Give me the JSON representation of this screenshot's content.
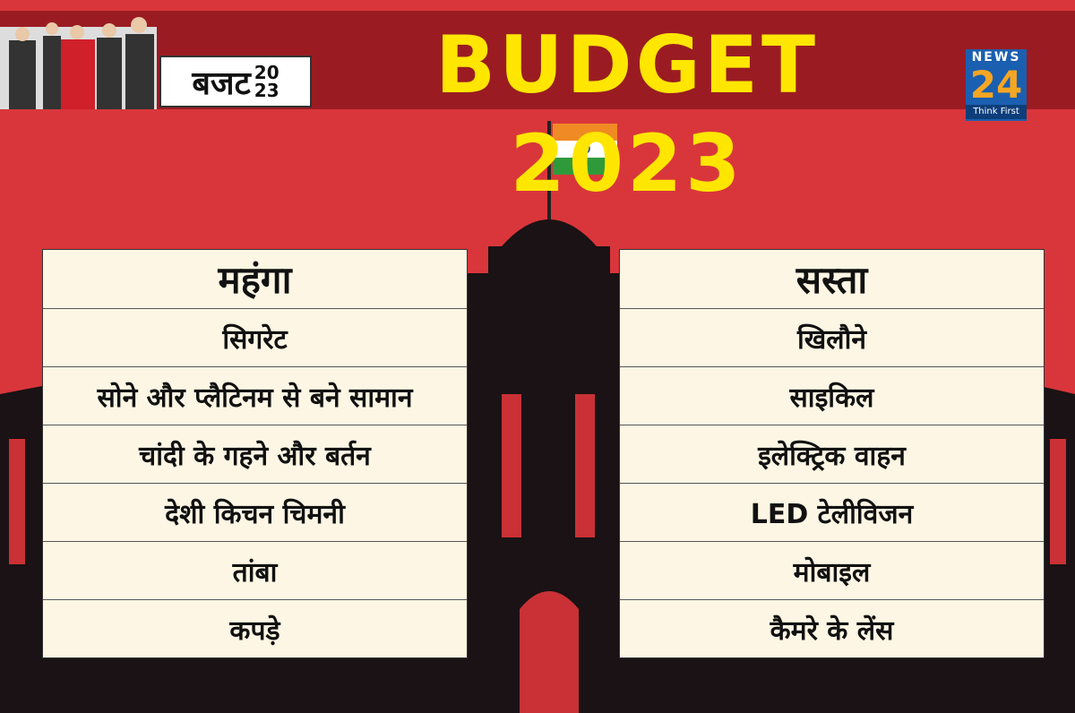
{
  "header": {
    "title": "BUDGET 2023",
    "badge": {
      "text": "बजट",
      "year_top": "20",
      "year_bottom": "23"
    },
    "logo": {
      "top": "NEWS",
      "number": "24",
      "tagline": "Think First"
    }
  },
  "tables": [
    {
      "heading": "महंगा",
      "rows": [
        "सिगरेट",
        "सोने और प्लैटिनम से बने सामान",
        "चांदी के गहने और बर्तन",
        "देशी किचन चिमनी",
        "तांबा",
        "कपड़े"
      ]
    },
    {
      "heading": "सस्ता",
      "rows": [
        "खिलौने",
        "साइकिल",
        "इलेक्ट्रिक वाहन",
        "LED टेलीविजन",
        "मोबाइल",
        "कैमरे के लेंस"
      ]
    }
  ]
}
